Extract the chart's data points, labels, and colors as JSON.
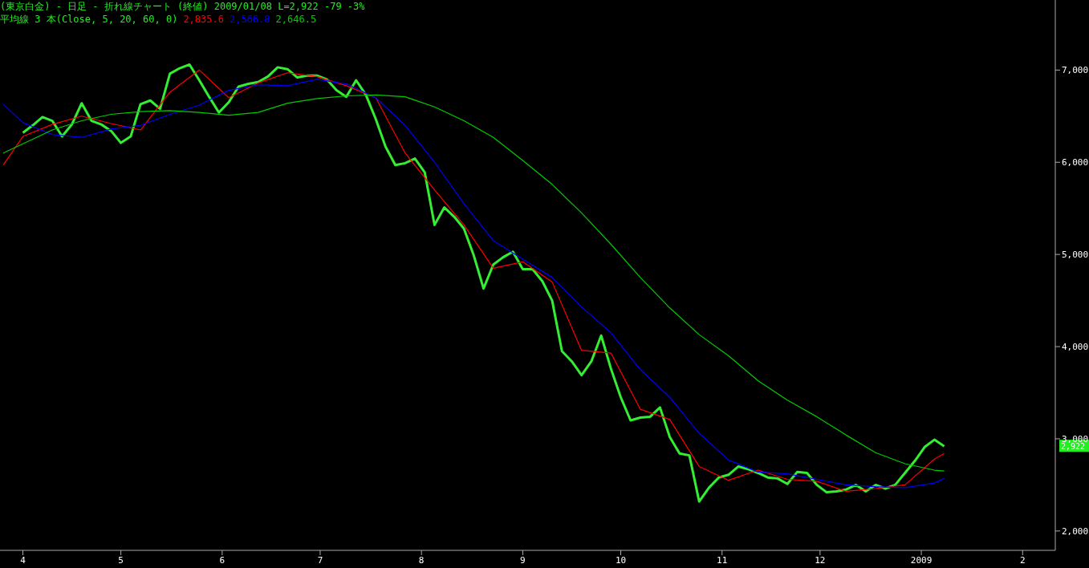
{
  "chart_data": {
    "type": "line",
    "title": "(東京白金) - 日足 - 折れ線チャート (終値) 2009/01/08 L=2,922 -79 -3%",
    "subtitle": "平均線 3 本(Close, 5, 20, 60, 0)",
    "xlim": [
      "2008-03-25",
      "2009-02-11"
    ],
    "xticks": [
      {
        "value": "2008-04-01",
        "label": "4"
      },
      {
        "value": "2008-05-01",
        "label": "5"
      },
      {
        "value": "2008-06-01",
        "label": "6"
      },
      {
        "value": "2008-07-01",
        "label": "7"
      },
      {
        "value": "2008-08-01",
        "label": "8"
      },
      {
        "value": "2008-09-01",
        "label": "9"
      },
      {
        "value": "2008-10-01",
        "label": "10"
      },
      {
        "value": "2008-11-01",
        "label": "11"
      },
      {
        "value": "2008-12-01",
        "label": "12"
      },
      {
        "value": "2009-01-01",
        "label": "2009"
      },
      {
        "value": "2009-02-01",
        "label": "2"
      }
    ],
    "ylim": [
      1790,
      7760
    ],
    "yticks": [
      {
        "value": 2000,
        "label": "2,000"
      },
      {
        "value": 3000,
        "label": "3,000"
      },
      {
        "value": 4000,
        "label": "4,000"
      },
      {
        "value": 5000,
        "label": "5,000"
      },
      {
        "value": 6000,
        "label": "6,000"
      },
      {
        "value": 7000,
        "label": "7,000"
      }
    ],
    "grid": false,
    "legend": false,
    "marker": "none",
    "line_style": "solid",
    "annotations": [
      "2,922"
    ],
    "series": [
      {
        "color": "#33ee33",
        "x": [
          "2008-04-01",
          "2008-04-04",
          "2008-04-07",
          "2008-04-10",
          "2008-04-13",
          "2008-04-16",
          "2008-04-19",
          "2008-04-22",
          "2008-04-25",
          "2008-04-28",
          "2008-05-01",
          "2008-05-04",
          "2008-05-07",
          "2008-05-10",
          "2008-05-13",
          "2008-05-16",
          "2008-05-19",
          "2008-05-22",
          "2008-05-25",
          "2008-05-28",
          "2008-05-31",
          "2008-06-03",
          "2008-06-06",
          "2008-06-09",
          "2008-06-12",
          "2008-06-15",
          "2008-06-18",
          "2008-06-21",
          "2008-06-24",
          "2008-06-27",
          "2008-06-30",
          "2008-07-03",
          "2008-07-06",
          "2008-07-09",
          "2008-07-12",
          "2008-07-15",
          "2008-07-18",
          "2008-07-21",
          "2008-07-24",
          "2008-07-27",
          "2008-07-30",
          "2008-08-02",
          "2008-08-05",
          "2008-08-08",
          "2008-08-11",
          "2008-08-14",
          "2008-08-17",
          "2008-08-20",
          "2008-08-23",
          "2008-08-26",
          "2008-08-29",
          "2008-09-01",
          "2008-09-04",
          "2008-09-07",
          "2008-09-10",
          "2008-09-13",
          "2008-09-16",
          "2008-09-19",
          "2008-09-22",
          "2008-09-25",
          "2008-09-28",
          "2008-10-01",
          "2008-10-04",
          "2008-10-07",
          "2008-10-10",
          "2008-10-13",
          "2008-10-16",
          "2008-10-19",
          "2008-10-22",
          "2008-10-25",
          "2008-10-28",
          "2008-10-31",
          "2008-11-03",
          "2008-11-06",
          "2008-11-09",
          "2008-11-12",
          "2008-11-15",
          "2008-11-18",
          "2008-11-21",
          "2008-11-24",
          "2008-11-27",
          "2008-11-30",
          "2008-12-03",
          "2008-12-06",
          "2008-12-09",
          "2008-12-12",
          "2008-12-15",
          "2008-12-18",
          "2008-12-21",
          "2008-12-24",
          "2008-12-27",
          "2008-12-30",
          "2009-01-02",
          "2009-01-05",
          "2009-01-08"
        ],
        "values": [
          6320,
          6400,
          6490,
          6450,
          6280,
          6410,
          6640,
          6450,
          6410,
          6340,
          6210,
          6280,
          6630,
          6670,
          6580,
          6960,
          7020,
          7060,
          6890,
          6710,
          6540,
          6650,
          6820,
          6850,
          6870,
          6930,
          7030,
          7010,
          6920,
          6940,
          6940,
          6900,
          6780,
          6710,
          6890,
          6730,
          6470,
          6170,
          5970,
          5990,
          6040,
          5890,
          5320,
          5510,
          5410,
          5280,
          4990,
          4630,
          4890,
          4970,
          5030,
          4840,
          4840,
          4710,
          4500,
          3950,
          3840,
          3690,
          3840,
          4120,
          3760,
          3450,
          3200,
          3230,
          3240,
          3340,
          3020,
          2840,
          2820,
          2320,
          2470,
          2580,
          2610,
          2700,
          2670,
          2630,
          2580,
          2570,
          2510,
          2640,
          2630,
          2500,
          2420,
          2430,
          2450,
          2500,
          2430,
          2500,
          2460,
          2500,
          2630,
          2760,
          2910,
          2990,
          2920
        ]
      },
      {
        "name": "2,835.6",
        "color": "#ff0000",
        "x": [
          "2008-03-26",
          "2008-04-01",
          "2008-04-10",
          "2008-04-19",
          "2008-04-28",
          "2008-05-07",
          "2008-05-16",
          "2008-05-25",
          "2008-06-03",
          "2008-06-12",
          "2008-06-21",
          "2008-06-30",
          "2008-07-09",
          "2008-07-18",
          "2008-07-27",
          "2008-08-05",
          "2008-08-14",
          "2008-08-23",
          "2008-09-01",
          "2008-09-10",
          "2008-09-19",
          "2008-09-28",
          "2008-10-07",
          "2008-10-16",
          "2008-10-25",
          "2008-11-03",
          "2008-11-12",
          "2008-11-21",
          "2008-11-30",
          "2008-12-09",
          "2008-12-18",
          "2008-12-27",
          "2009-01-05",
          "2009-01-08"
        ],
        "values": [
          5970,
          6280,
          6410,
          6500,
          6420,
          6350,
          6760,
          7000,
          6700,
          6860,
          6970,
          6930,
          6830,
          6700,
          6100,
          5700,
          5320,
          4850,
          4920,
          4700,
          3960,
          3930,
          3320,
          3210,
          2700,
          2550,
          2660,
          2560,
          2540,
          2430,
          2460,
          2500,
          2780,
          2840
        ]
      },
      {
        "name": "2,566.8",
        "color": "#0000ff",
        "x": [
          "2008-03-26",
          "2008-04-01",
          "2008-04-10",
          "2008-04-19",
          "2008-04-28",
          "2008-05-07",
          "2008-05-16",
          "2008-05-25",
          "2008-06-03",
          "2008-06-12",
          "2008-06-21",
          "2008-06-30",
          "2008-07-09",
          "2008-07-18",
          "2008-07-27",
          "2008-08-05",
          "2008-08-14",
          "2008-08-23",
          "2008-09-01",
          "2008-09-10",
          "2008-09-19",
          "2008-09-28",
          "2008-10-07",
          "2008-10-16",
          "2008-10-25",
          "2008-11-03",
          "2008-11-12",
          "2008-11-21",
          "2008-11-30",
          "2008-12-09",
          "2008-12-18",
          "2008-12-27",
          "2009-01-05",
          "2009-01-08"
        ],
        "values": [
          6630,
          6430,
          6300,
          6270,
          6360,
          6400,
          6520,
          6620,
          6780,
          6840,
          6830,
          6900,
          6850,
          6700,
          6400,
          6000,
          5550,
          5150,
          4950,
          4750,
          4430,
          4150,
          3750,
          3450,
          3060,
          2770,
          2640,
          2620,
          2560,
          2500,
          2480,
          2470,
          2520,
          2570
        ]
      },
      {
        "name": "2,646.5",
        "color": "#00cc00",
        "x": [
          "2008-03-26",
          "2008-04-01",
          "2008-04-10",
          "2008-04-19",
          "2008-04-28",
          "2008-05-07",
          "2008-05-16",
          "2008-05-25",
          "2008-06-03",
          "2008-06-12",
          "2008-06-21",
          "2008-06-30",
          "2008-07-09",
          "2008-07-18",
          "2008-07-27",
          "2008-08-05",
          "2008-08-14",
          "2008-08-23",
          "2008-09-01",
          "2008-09-10",
          "2008-09-19",
          "2008-09-28",
          "2008-10-07",
          "2008-10-16",
          "2008-10-25",
          "2008-11-03",
          "2008-11-12",
          "2008-11-21",
          "2008-11-30",
          "2008-12-09",
          "2008-12-18",
          "2008-12-27",
          "2009-01-05",
          "2009-01-08"
        ],
        "values": [
          6100,
          6200,
          6350,
          6450,
          6520,
          6550,
          6560,
          6540,
          6510,
          6540,
          6640,
          6690,
          6720,
          6730,
          6710,
          6600,
          6450,
          6270,
          6020,
          5760,
          5450,
          5110,
          4750,
          4420,
          4130,
          3900,
          3630,
          3420,
          3240,
          3040,
          2850,
          2730,
          2660,
          2650
        ]
      }
    ]
  }
}
